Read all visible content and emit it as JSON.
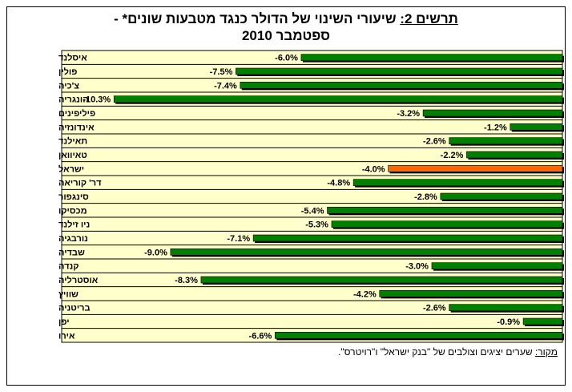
{
  "title": {
    "label": "תרשים 2:",
    "text": "שיעורי השינוי של הדולר כנגד מטבעות שונים* -",
    "line2": "ספטמבר 2010"
  },
  "source": {
    "label": "מקור:",
    "text": "שערים יציגים וצולבים של \"בנק ישראל\" ו\"רויטרס\"."
  },
  "colors": {
    "bar": "#008000",
    "highlight": "#ff6600",
    "plot_bg": "#ffffcc"
  },
  "chart_data": {
    "type": "bar",
    "orientation": "horizontal",
    "categories": [
      "איסלנד",
      "פולין",
      "צ'כיה",
      "הונגריה",
      "פיליפינים",
      "אינדונזיה",
      "תאילנד",
      "טאיוואן",
      "ישראל",
      "דר' קוריאה",
      "סינגפור",
      "מכסיקו",
      "ניו זילנד",
      "נורבגיה",
      "שבדיה",
      "קנדה",
      "אוסטרליה",
      "שוויץ",
      "בריטניה",
      "יפן",
      "אירו"
    ],
    "values": [
      -6.0,
      -7.5,
      -7.4,
      -10.3,
      -3.2,
      -1.2,
      -2.6,
      -2.2,
      -4.0,
      -4.8,
      -2.8,
      -5.4,
      -5.3,
      -7.1,
      -9.0,
      -3.0,
      -8.3,
      -4.2,
      -2.6,
      -0.9,
      -6.6
    ],
    "data_labels": [
      "-6.0%",
      "-7.5%",
      "-7.4%",
      "-10.3%",
      "-3.2%",
      "-1.2%",
      "-2.6%",
      "-2.2%",
      "-4.0%",
      "-4.8%",
      "-2.8%",
      "-5.4%",
      "-5.3%",
      "-7.1%",
      "-9.0%",
      "-3.0%",
      "-8.3%",
      "-4.2%",
      "-2.6%",
      "-0.9%",
      "-6.6%"
    ],
    "highlight_category": "ישראל",
    "xlim": [
      -11.5,
      0
    ],
    "grid": true,
    "legend": "none"
  }
}
